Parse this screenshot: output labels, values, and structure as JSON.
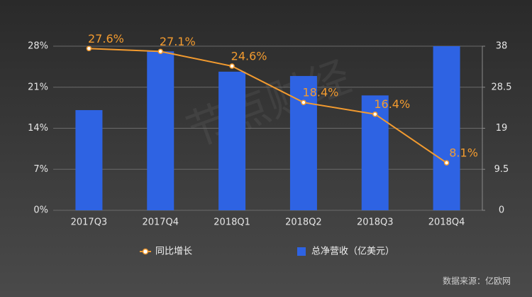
{
  "chart_data": {
    "type": "combo",
    "categories": [
      "2017Q3",
      "2017Q4",
      "2018Q1",
      "2018Q2",
      "2018Q3",
      "2018Q4"
    ],
    "series": [
      {
        "name": "同比增长",
        "type": "line",
        "axis": "y",
        "color": "#f39b2f",
        "values": [
          27.6,
          27.1,
          24.6,
          18.4,
          16.4,
          8.1
        ],
        "value_labels": [
          "27.6%",
          "27.1%",
          "24.6%",
          "18.4%",
          "16.4%",
          "8.1%"
        ]
      },
      {
        "name": "总净营收（亿美元）",
        "type": "bar",
        "axis": "y2",
        "color": "#2e63e3",
        "values": [
          23.2,
          36.8,
          32.1,
          31.1,
          26.6,
          38
        ]
      }
    ],
    "ylim": [
      0,
      28
    ],
    "yticks": [
      {
        "value": 0,
        "label": "0%"
      },
      {
        "value": 7,
        "label": "7%"
      },
      {
        "value": 14,
        "label": "14%"
      },
      {
        "value": 21,
        "label": "21%"
      },
      {
        "value": 28,
        "label": "28%"
      }
    ],
    "y2lim": [
      0,
      38
    ],
    "y2ticks": [
      0,
      9.5,
      19,
      28.5,
      38
    ],
    "grid": true,
    "legend": "bottom",
    "watermark": "节点财经",
    "source": "数据来源：亿欧网"
  }
}
